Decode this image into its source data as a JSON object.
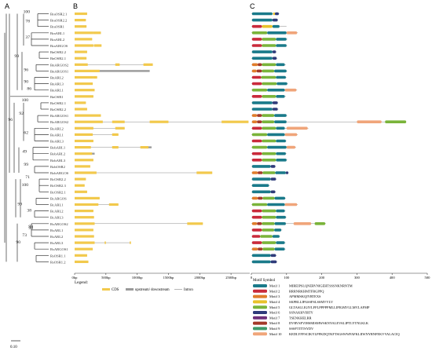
{
  "panels": {
    "a": "A",
    "b": "B",
    "c": "C"
  },
  "genes": [
    "BraOSR2.1",
    "BraOSR2.2",
    "BraOSR1",
    "BraARL1",
    "BraARL2",
    "BraARGOS",
    "BnOSR2.2",
    "BnOSR2.1",
    "BnARGOS2",
    "BnARGOS1",
    "BnARL2",
    "BnARL3",
    "BnARL1",
    "BnOSR1",
    "BoOSR2.1",
    "BoOSR2.2",
    "BoARGOS1",
    "BoARGOS2",
    "BoARL2",
    "BoARL1",
    "BoARL3",
    "BobARL1",
    "BobARL2",
    "BobARL3",
    "BobOSR2",
    "BobARGOS",
    "BcOSR2.2",
    "BcOSR2.3",
    "BcOSR2.1",
    "BcARGOS",
    "BcARL1",
    "BcARL2",
    "BcARL3",
    "RsARGOS2",
    "RsARL1",
    "RsARL2",
    "RsARL3",
    "RsARGOS1",
    "RsOSR1.1",
    "RsOSR1.2"
  ],
  "bootstrap": [
    "100",
    "78",
    "37",
    "99",
    "96",
    "90",
    "86",
    "100",
    "92",
    "96",
    "62",
    "49",
    "99",
    "71",
    "100",
    "99",
    "38",
    "99",
    "73",
    "99",
    "90"
  ],
  "scale_label": "0.10",
  "gene_axis": {
    "ticks": [
      "0bp",
      "500bp",
      "1000bp",
      "1500bp",
      "2000bp",
      "2500bp"
    ],
    "max": 2800
  },
  "gene_legend": {
    "title": "Legend:",
    "cds": "CDS",
    "utr": "upstream/ downstream",
    "intron": "Intron"
  },
  "motif_axis": {
    "ticks": [
      "0",
      "100",
      "200",
      "300",
      "400",
      "500"
    ],
    "max": 500
  },
  "motif_legend": {
    "title": "Motif Symbol",
    "items": [
      {
        "name": "Motif 1",
        "seq": "MIREIPSLQNERVNIGEHTSSSNKNRNTM",
        "color": "#1a7a8a"
      },
      {
        "name": "Motif 2",
        "seq": "RRRNRKHMTFRGPPQ",
        "color": "#c92a3b"
      },
      {
        "name": "Motif 3",
        "seq": "APMMSKQIYRTEXS",
        "color": "#e07d2c"
      },
      {
        "name": "Motif 4",
        "seq": "SKPRLLIPASSFSLSSMVVLV",
        "color": "#e8c22a"
      },
      {
        "name": "Motif 5",
        "seq": "GLTASLLIGIVLFFLPPPPPMLLIPIGMVLLMVLAFMP",
        "color": "#7ab43a"
      },
      {
        "name": "Motif 6",
        "seq": "SSNAKHVIRTY",
        "color": "#2f3b7a"
      },
      {
        "name": "Motif 7",
        "seq": "TSENKHELRR",
        "color": "#6e2f7a"
      },
      {
        "name": "Motif 8",
        "seq": "DVRVSFVIHSMISMWSKNYALEVALIPTLYTNLKLK",
        "color": "#a33a2a"
      },
      {
        "name": "Motif 9",
        "seq": "SSSFTITTSYDV",
        "color": "#3f9a6a"
      },
      {
        "name": "Motif 10",
        "seq": "KEDLYFFSCIKYLPFKDQTKFTSGSWWFAFKLIIWNYRNFEKVVALACIQ",
        "color": "#f0a57a"
      }
    ]
  },
  "gene_rows": [
    [
      [
        0,
        200
      ]
    ],
    [
      [
        0,
        180
      ]
    ],
    [
      [
        0,
        190
      ]
    ],
    [
      [
        0,
        300
      ],
      [
        300,
        420
      ]
    ],
    [
      [
        0,
        280
      ]
    ],
    [
      [
        0,
        300
      ],
      [
        310,
        430
      ]
    ],
    [
      [
        0,
        200
      ]
    ],
    [
      [
        0,
        190
      ]
    ],
    [
      [
        0,
        210
      ],
      [
        650,
        720
      ],
      [
        1100,
        1250
      ]
    ],
    [
      [
        0,
        400
      ]
    ],
    [
      [
        0,
        300
      ],
      [
        300,
        360
      ]
    ],
    [
      [
        0,
        290
      ]
    ],
    [
      [
        0,
        320
      ]
    ],
    [
      [
        0,
        300
      ]
    ],
    [
      [
        0,
        180
      ]
    ],
    [
      [
        0,
        200
      ]
    ],
    [
      [
        0,
        420
      ]
    ],
    [
      [
        0,
        450
      ],
      [
        600,
        800
      ],
      [
        1200,
        1500
      ],
      [
        2350,
        2780
      ]
    ],
    [
      [
        0,
        300
      ],
      [
        650,
        800
      ]
    ],
    [
      [
        0,
        290
      ],
      [
        600,
        700
      ]
    ],
    [
      [
        0,
        300
      ]
    ],
    [
      [
        0,
        260
      ],
      [
        600,
        700
      ],
      [
        1050,
        1180
      ]
    ],
    [
      [
        0,
        280
      ]
    ],
    [
      [
        0,
        300
      ]
    ],
    [
      [
        0,
        250
      ]
    ],
    [
      [
        0,
        350
      ],
      [
        1950,
        2200
      ]
    ],
    [
      [
        0,
        180
      ]
    ],
    [
      [
        0,
        160
      ]
    ],
    [
      [
        0,
        200
      ]
    ],
    [
      [
        0,
        400
      ]
    ],
    [
      [
        0,
        380
      ],
      [
        550,
        700
      ]
    ],
    [
      [
        0,
        300
      ]
    ],
    [
      [
        0,
        310
      ]
    ],
    [
      [
        0,
        320
      ],
      [
        1800,
        2050
      ]
    ],
    [
      [
        0,
        300
      ]
    ],
    [
      [
        0,
        310
      ]
    ],
    [
      [
        0,
        320
      ],
      [
        480,
        500
      ],
      [
        880,
        900
      ]
    ],
    [
      [
        0,
        290
      ]
    ],
    [
      [
        0,
        200
      ]
    ],
    [
      [
        0,
        220
      ]
    ]
  ],
  "gene_utr": [
    [],
    [],
    [],
    [],
    [],
    [],
    [],
    [],
    [],
    [
      [
        400,
        1200
      ]
    ],
    [],
    [],
    [],
    [],
    [],
    [],
    [],
    [],
    [],
    [],
    [],
    [
      [
        1180,
        1230
      ]
    ],
    [
      [
        280,
        320
      ]
    ],
    [],
    [],
    [],
    [],
    [],
    [],
    [],
    [],
    [],
    [],
    [],
    [],
    [],
    [],
    [],
    [],
    []
  ],
  "gene_lengths": [
    200,
    180,
    190,
    420,
    280,
    430,
    200,
    190,
    1250,
    1200,
    360,
    290,
    320,
    300,
    180,
    200,
    420,
    2780,
    800,
    700,
    300,
    1230,
    320,
    300,
    250,
    2200,
    180,
    160,
    200,
    400,
    700,
    300,
    310,
    2050,
    300,
    310,
    900,
    290,
    200,
    220
  ],
  "motif_rows": [
    [
      [
        0,
        2,
        60
      ],
      [
        3,
        62,
        67
      ],
      [
        5,
        67,
        78
      ]
    ],
    [
      [
        0,
        2,
        60
      ],
      [
        5,
        60,
        75
      ]
    ],
    [
      [
        1,
        2,
        30
      ],
      [
        3,
        30,
        60
      ],
      [
        0,
        60,
        80
      ]
    ],
    [
      [
        4,
        2,
        45
      ],
      [
        0,
        45,
        100
      ],
      [
        9,
        100,
        130
      ]
    ],
    [
      [
        1,
        2,
        30
      ],
      [
        4,
        30,
        70
      ],
      [
        0,
        70,
        100
      ]
    ],
    [
      [
        1,
        2,
        30
      ],
      [
        4,
        30,
        70
      ],
      [
        0,
        70,
        100
      ]
    ],
    [
      [
        0,
        2,
        60
      ],
      [
        5,
        60,
        70
      ]
    ],
    [
      [
        0,
        2,
        60
      ],
      [
        5,
        60,
        72
      ]
    ],
    [
      [
        2,
        2,
        18
      ],
      [
        7,
        18,
        30
      ],
      [
        4,
        30,
        70
      ],
      [
        0,
        70,
        95
      ]
    ],
    [
      [
        2,
        2,
        15
      ],
      [
        7,
        15,
        30
      ],
      [
        4,
        30,
        65
      ],
      [
        0,
        65,
        100
      ]
    ],
    [
      [
        1,
        2,
        28
      ],
      [
        4,
        28,
        70
      ],
      [
        0,
        70,
        98
      ]
    ],
    [
      [
        1,
        2,
        30
      ],
      [
        4,
        30,
        72
      ],
      [
        0,
        72,
        102
      ]
    ],
    [
      [
        4,
        2,
        45
      ],
      [
        0,
        45,
        95
      ],
      [
        9,
        95,
        128
      ]
    ],
    [
      [
        1,
        2,
        30
      ],
      [
        4,
        30,
        70
      ],
      [
        0,
        70,
        95
      ]
    ],
    [
      [
        0,
        2,
        60
      ],
      [
        5,
        60,
        75
      ]
    ],
    [
      [
        0,
        2,
        60
      ],
      [
        5,
        60,
        75
      ]
    ],
    [
      [
        2,
        2,
        16
      ],
      [
        7,
        16,
        30
      ],
      [
        4,
        30,
        65
      ],
      [
        0,
        65,
        100
      ]
    ],
    [
      [
        2,
        2,
        16
      ],
      [
        7,
        16,
        30
      ],
      [
        4,
        30,
        65
      ],
      [
        0,
        65,
        100
      ],
      [
        9,
        300,
        370
      ],
      [
        4,
        380,
        440
      ]
    ],
    [
      [
        1,
        2,
        30
      ],
      [
        4,
        30,
        70
      ],
      [
        0,
        70,
        95
      ],
      [
        9,
        100,
        160
      ]
    ],
    [
      [
        4,
        2,
        45
      ],
      [
        0,
        45,
        95
      ],
      [
        9,
        95,
        130
      ]
    ],
    [
      [
        1,
        2,
        30
      ],
      [
        4,
        30,
        70
      ],
      [
        0,
        70,
        98
      ]
    ],
    [
      [
        4,
        2,
        45
      ],
      [
        0,
        45,
        100
      ],
      [
        9,
        100,
        125
      ]
    ],
    [
      [
        1,
        2,
        30
      ],
      [
        4,
        30,
        70
      ],
      [
        0,
        70,
        98
      ]
    ],
    [
      [
        1,
        2,
        30
      ],
      [
        4,
        30,
        70
      ],
      [
        0,
        70,
        100
      ]
    ],
    [
      [
        0,
        2,
        55
      ],
      [
        5,
        55,
        68
      ]
    ],
    [
      [
        2,
        2,
        18
      ],
      [
        7,
        18,
        32
      ],
      [
        4,
        32,
        68
      ],
      [
        0,
        68,
        98
      ],
      [
        5,
        98,
        105
      ]
    ],
    [
      [
        0,
        2,
        55
      ],
      [
        5,
        55,
        70
      ]
    ],
    [
      [
        0,
        2,
        50
      ]
    ],
    [
      [
        0,
        2,
        55
      ],
      [
        5,
        55,
        68
      ]
    ],
    [
      [
        2,
        2,
        18
      ],
      [
        7,
        18,
        32
      ],
      [
        4,
        32,
        66
      ],
      [
        0,
        66,
        96
      ]
    ],
    [
      [
        4,
        2,
        45
      ],
      [
        0,
        45,
        95
      ],
      [
        9,
        95,
        130
      ]
    ],
    [
      [
        1,
        2,
        30
      ],
      [
        4,
        30,
        70
      ],
      [
        0,
        70,
        95
      ]
    ],
    [
      [
        1,
        2,
        30
      ],
      [
        4,
        30,
        70
      ],
      [
        0,
        70,
        98
      ]
    ],
    [
      [
        2,
        2,
        16
      ],
      [
        7,
        16,
        30
      ],
      [
        4,
        30,
        66
      ],
      [
        0,
        66,
        98
      ],
      [
        9,
        120,
        170
      ],
      [
        4,
        180,
        210
      ]
    ],
    [
      [
        1,
        2,
        30
      ],
      [
        4,
        30,
        65
      ],
      [
        0,
        65,
        85
      ]
    ],
    [
      [
        1,
        2,
        25
      ],
      [
        4,
        25,
        60
      ],
      [
        0,
        60,
        80
      ]
    ],
    [
      [
        1,
        2,
        30
      ],
      [
        4,
        30,
        70
      ],
      [
        0,
        70,
        95
      ]
    ],
    [
      [
        2,
        2,
        18
      ],
      [
        7,
        18,
        32
      ],
      [
        4,
        32,
        66
      ],
      [
        0,
        66,
        95
      ]
    ],
    [
      [
        0,
        2,
        55
      ],
      [
        5,
        55,
        70
      ]
    ],
    [
      [
        0,
        2,
        55
      ],
      [
        5,
        55,
        72
      ]
    ]
  ],
  "motif_lengths": [
    80,
    75,
    100,
    132,
    103,
    102,
    72,
    74,
    98,
    102,
    100,
    104,
    130,
    98,
    76,
    77,
    102,
    440,
    162,
    132,
    100,
    127,
    100,
    102,
    70,
    107,
    72,
    52,
    70,
    98,
    132,
    97,
    100,
    212,
    88,
    82,
    97,
    97,
    72,
    74
  ]
}
